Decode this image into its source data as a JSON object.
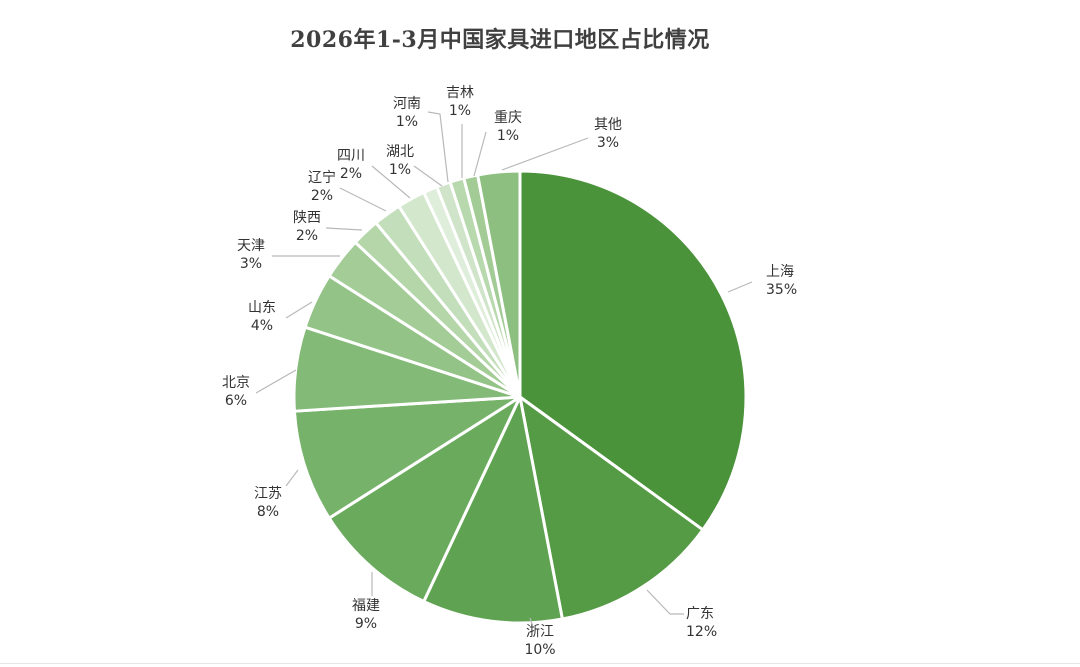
{
  "chart_data": {
    "type": "pie",
    "title": "2026年1-3月中国家具进口地区占比情况",
    "start_angle_deg": 0,
    "direction": "clockwise",
    "slices": [
      {
        "label": "上海",
        "value": 35,
        "value_label": "35%",
        "color": "#4a933b"
      },
      {
        "label": "广东",
        "value": 12,
        "value_label": "12%",
        "color": "#559b46"
      },
      {
        "label": "浙江",
        "value": 10,
        "value_label": "10%",
        "color": "#5fa251"
      },
      {
        "label": "福建",
        "value": 9,
        "value_label": "9%",
        "color": "#6aaa5d"
      },
      {
        "label": "江苏",
        "value": 8,
        "value_label": "8%",
        "color": "#76b269"
      },
      {
        "label": "北京",
        "value": 6,
        "value_label": "6%",
        "color": "#84ba77"
      },
      {
        "label": "山东",
        "value": 4,
        "value_label": "4%",
        "color": "#93c386"
      },
      {
        "label": "天津",
        "value": 3,
        "value_label": "3%",
        "color": "#a3cc97"
      },
      {
        "label": "陕西",
        "value": 2,
        "value_label": "2%",
        "color": "#b4d6a9"
      },
      {
        "label": "辽宁",
        "value": 2,
        "value_label": "2%",
        "color": "#c3debb"
      },
      {
        "label": "四川",
        "value": 2,
        "value_label": "2%",
        "color": "#d2e7cc"
      },
      {
        "label": "湖北",
        "value": 1,
        "value_label": "1%",
        "color": "#dfeedb"
      },
      {
        "label": "河南",
        "value": 1,
        "value_label": "1%",
        "color": "#cfe4c8"
      },
      {
        "label": "吉林",
        "value": 1,
        "value_label": "1%",
        "color": "#b8d8ae"
      },
      {
        "label": "重庆",
        "value": 1,
        "value_label": "1%",
        "color": "#a2cb95"
      },
      {
        "label": "其他",
        "value": 3,
        "value_label": "3%",
        "color": "#8dbf80"
      }
    ]
  }
}
